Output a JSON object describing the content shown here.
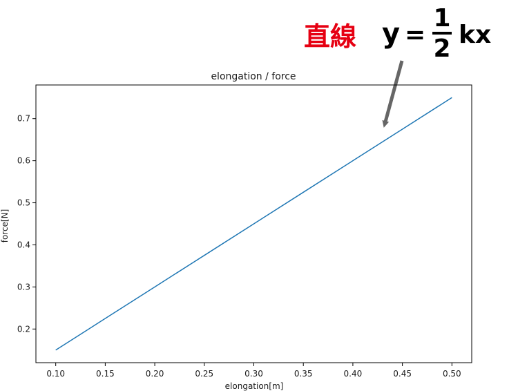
{
  "annotation": {
    "label": "直線",
    "lhs": "y",
    "equals": "=",
    "numerator": "1",
    "denominator": "2",
    "rhs": "kx",
    "label_color": "#e60012",
    "arrow_color": "#666666"
  },
  "chart_data": {
    "type": "line",
    "title": "elongation / force",
    "xlabel": "elongation[m]",
    "ylabel": "force[N]",
    "x": [
      0.1,
      0.15,
      0.2,
      0.25,
      0.3,
      0.35,
      0.4,
      0.45,
      0.5
    ],
    "series": [
      {
        "values": [
          0.15,
          0.225,
          0.3,
          0.375,
          0.45,
          0.525,
          0.6,
          0.675,
          0.75
        ],
        "color": "#1f77b4"
      }
    ],
    "xlim": [
      0.08,
      0.52
    ],
    "ylim": [
      0.12,
      0.78
    ],
    "xticks": [
      "0.10",
      "0.15",
      "0.20",
      "0.25",
      "0.30",
      "0.35",
      "0.40",
      "0.45",
      "0.50"
    ],
    "yticks": [
      "0.2",
      "0.3",
      "0.4",
      "0.5",
      "0.6",
      "0.7"
    ],
    "grid": false,
    "legend": "none"
  }
}
